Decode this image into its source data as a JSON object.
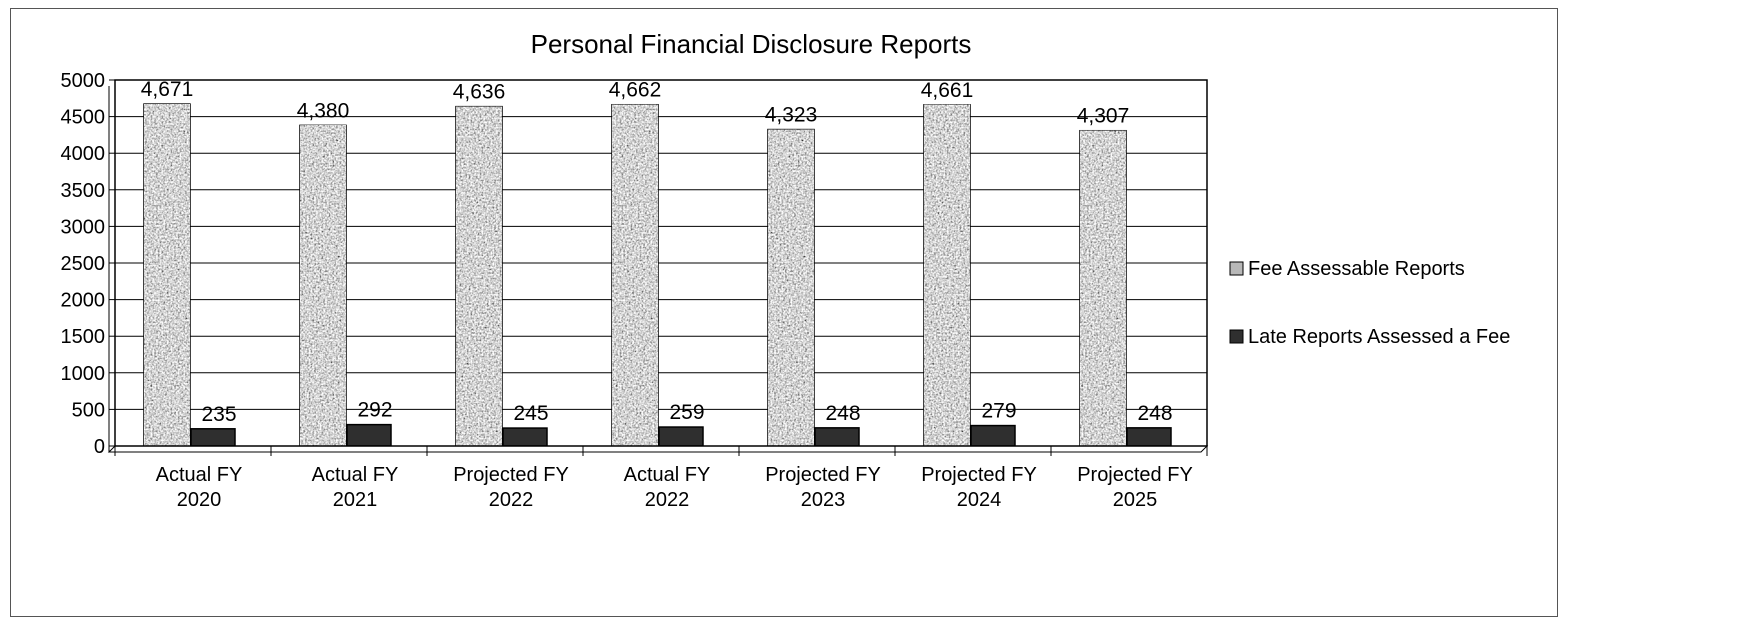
{
  "chart_data": {
    "type": "bar",
    "title": "Personal Financial Disclosure Reports",
    "xlabel": "",
    "ylabel": "",
    "ylim": [
      0,
      5000
    ],
    "yticks": [
      0,
      500,
      1000,
      1500,
      2000,
      2500,
      3000,
      3500,
      4000,
      4500,
      5000
    ],
    "grid": true,
    "legend_position": "right",
    "categories": [
      [
        "Actual FY",
        "2020"
      ],
      [
        "Actual FY",
        "2021"
      ],
      [
        "Projected FY",
        "2022"
      ],
      [
        "Actual FY",
        "2022"
      ],
      [
        "Projected FY",
        "2023"
      ],
      [
        "Projected FY",
        "2024"
      ],
      [
        "Projected FY",
        "2025"
      ]
    ],
    "series": [
      {
        "name": "Fee Assessable Reports",
        "values": [
          4671,
          4380,
          4636,
          4662,
          4323,
          4661,
          4307
        ],
        "labels": [
          "4,671",
          "4,380",
          "4,636",
          "4,662",
          "4,323",
          "4,661",
          "4,307"
        ],
        "color": "#a9a9a9"
      },
      {
        "name": "Late Reports Assessed a Fee",
        "values": [
          235,
          292,
          245,
          259,
          248,
          279,
          248
        ],
        "labels": [
          "235",
          "292",
          "245",
          "259",
          "248",
          "279",
          "248"
        ],
        "color": "#2f2f2f"
      }
    ]
  }
}
